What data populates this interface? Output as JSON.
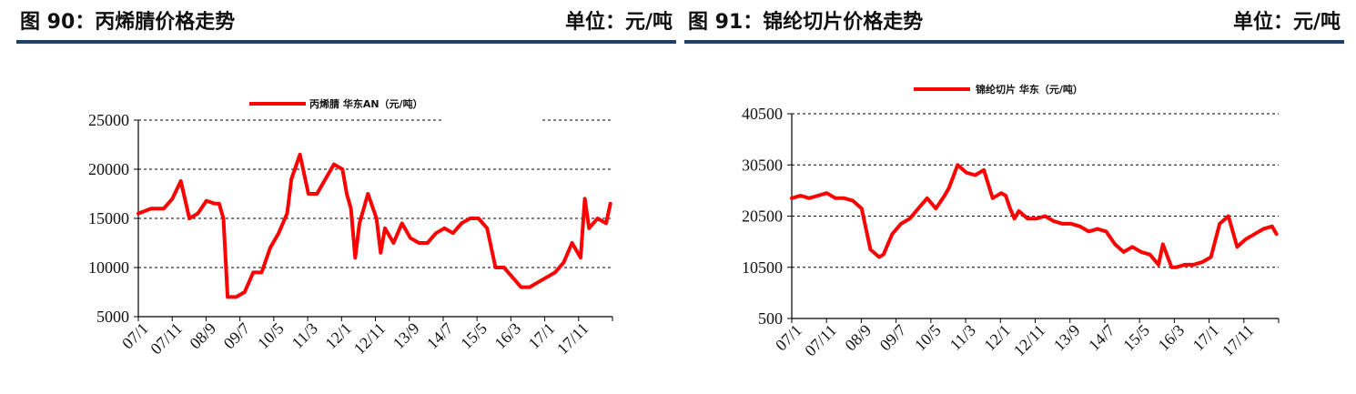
{
  "charts": [
    {
      "header": {
        "title": "图 90：丙烯腈价格走势",
        "unit": "单位：元/吨"
      },
      "chart_data": {
        "type": "line",
        "legend": "丙烯腈 华东AN（元/吨）",
        "legend_position": "top",
        "color": "#ff0000",
        "ylim": [
          5000,
          25000
        ],
        "yticks": [
          5000,
          10000,
          15000,
          20000,
          25000
        ],
        "xticks": [
          "07/1",
          "07/11",
          "08/9",
          "09/7",
          "10/5",
          "11/3",
          "12/1",
          "12/11",
          "13/9",
          "14/7",
          "15/5",
          "16/3",
          "17/1",
          "17/11"
        ],
        "grid": "horizontal dashed",
        "x": [
          2007.0,
          2007.3,
          2007.6,
          2007.8,
          2008.0,
          2008.2,
          2008.4,
          2008.6,
          2008.8,
          2008.9,
          2009.0,
          2009.1,
          2009.3,
          2009.5,
          2009.7,
          2009.9,
          2010.1,
          2010.3,
          2010.5,
          2010.6,
          2010.8,
          2011.0,
          2011.2,
          2011.4,
          2011.6,
          2011.8,
          2011.9,
          2012.0,
          2012.1,
          2012.2,
          2012.4,
          2012.6,
          2012.7,
          2012.8,
          2013.0,
          2013.2,
          2013.4,
          2013.6,
          2013.8,
          2014.0,
          2014.2,
          2014.4,
          2014.6,
          2014.8,
          2015.0,
          2015.2,
          2015.4,
          2015.6,
          2015.8,
          2016.0,
          2016.2,
          2016.4,
          2016.6,
          2016.8,
          2017.0,
          2017.2,
          2017.4,
          2017.5,
          2017.6,
          2017.8,
          2018.0,
          2018.1
        ],
        "values": [
          15500,
          16000,
          16000,
          17000,
          18800,
          15000,
          15500,
          16800,
          16500,
          16500,
          15000,
          7000,
          7000,
          7500,
          9500,
          9500,
          12000,
          13500,
          15500,
          19000,
          21500,
          17500,
          17500,
          19000,
          20500,
          20000,
          17500,
          16000,
          11000,
          14500,
          17500,
          15000,
          11500,
          14000,
          12500,
          14500,
          13000,
          12500,
          12500,
          13500,
          14000,
          13500,
          14500,
          15000,
          15000,
          14000,
          10000,
          10000,
          9000,
          8000,
          8000,
          8500,
          9000,
          9500,
          10500,
          12500,
          11000,
          17000,
          14000,
          15000,
          14500,
          16500
        ]
      }
    },
    {
      "header": {
        "title": "图 91：锦纶切片价格走势",
        "unit": "单位：元/吨"
      },
      "chart_data": {
        "type": "line",
        "legend": "锦纶切片 华东（元/吨）",
        "legend_position": "top",
        "color": "#ff0000",
        "ylim": [
          500,
          40500
        ],
        "yticks": [
          500,
          10500,
          20500,
          30500,
          40500
        ],
        "xticks": [
          "07/1",
          "07/11",
          "08/9",
          "09/7",
          "10/5",
          "11/3",
          "12/1",
          "12/11",
          "13/9",
          "14/7",
          "15/5",
          "16/3",
          "17/1",
          "17/11"
        ],
        "grid": "horizontal dashed",
        "x": [
          2007.0,
          2007.2,
          2007.4,
          2007.6,
          2007.8,
          2008.0,
          2008.2,
          2008.4,
          2008.6,
          2008.8,
          2009.0,
          2009.1,
          2009.3,
          2009.5,
          2009.7,
          2009.9,
          2010.1,
          2010.3,
          2010.5,
          2010.6,
          2010.8,
          2011.0,
          2011.2,
          2011.4,
          2011.6,
          2011.8,
          2011.9,
          2012.0,
          2012.1,
          2012.2,
          2012.4,
          2012.6,
          2012.8,
          2013.0,
          2013.2,
          2013.4,
          2013.6,
          2013.8,
          2014.0,
          2014.2,
          2014.4,
          2014.6,
          2014.8,
          2015.0,
          2015.2,
          2015.4,
          2015.5,
          2015.7,
          2015.8,
          2016.0,
          2016.2,
          2016.4,
          2016.6,
          2016.8,
          2017.0,
          2017.2,
          2017.4,
          2017.6,
          2017.8,
          2018.0,
          2018.1
        ],
        "values": [
          24000,
          24500,
          24000,
          24500,
          25000,
          24000,
          24000,
          23500,
          22000,
          14000,
          12500,
          13000,
          17000,
          19000,
          20000,
          22000,
          24000,
          22000,
          24500,
          26000,
          30500,
          29000,
          28500,
          29500,
          24000,
          25000,
          24500,
          22000,
          20000,
          21500,
          20000,
          20000,
          20500,
          19500,
          19000,
          19000,
          18500,
          17500,
          18000,
          17500,
          15000,
          13500,
          14500,
          13500,
          13000,
          11000,
          15000,
          10500,
          10500,
          11000,
          11000,
          11500,
          12500,
          19000,
          20500,
          14500,
          16000,
          17000,
          18000,
          18500,
          17000
        ]
      }
    }
  ]
}
